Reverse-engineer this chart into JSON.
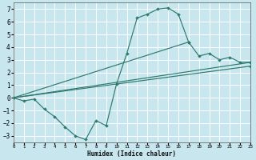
{
  "xlabel": "Humidex (Indice chaleur)",
  "xlim": [
    0,
    23
  ],
  "ylim": [
    -3.5,
    7.5
  ],
  "xticks": [
    0,
    1,
    2,
    3,
    4,
    5,
    6,
    7,
    8,
    9,
    10,
    11,
    12,
    13,
    14,
    15,
    16,
    17,
    18,
    19,
    20,
    21,
    22,
    23
  ],
  "yticks": [
    -3,
    -2,
    -1,
    0,
    1,
    2,
    3,
    4,
    5,
    6,
    7
  ],
  "background_color": "#c8e6ee",
  "grid_color": "#ffffff",
  "line_color": "#2d7a6e",
  "curve1_x": [
    0,
    1,
    2,
    3,
    4,
    5,
    6,
    7,
    8,
    9,
    10,
    11,
    12,
    13,
    14,
    15,
    16,
    17
  ],
  "curve1_y": [
    0.0,
    -0.25,
    -0.1,
    -0.9,
    -1.5,
    -2.3,
    -3.0,
    -3.3,
    -1.8,
    -2.2,
    1.1,
    3.5,
    6.3,
    6.6,
    7.0,
    7.1,
    6.6,
    4.4
  ],
  "curve2_x": [
    0,
    17,
    18,
    19,
    20,
    21,
    22,
    23
  ],
  "curve2_y": [
    0.0,
    4.4,
    3.3,
    3.5,
    3.0,
    3.2,
    2.8,
    2.8
  ],
  "curve3_x": [
    0,
    23
  ],
  "curve3_y": [
    0.0,
    2.8
  ],
  "curve4_x": [
    0,
    23
  ],
  "curve4_y": [
    0.0,
    2.5
  ]
}
